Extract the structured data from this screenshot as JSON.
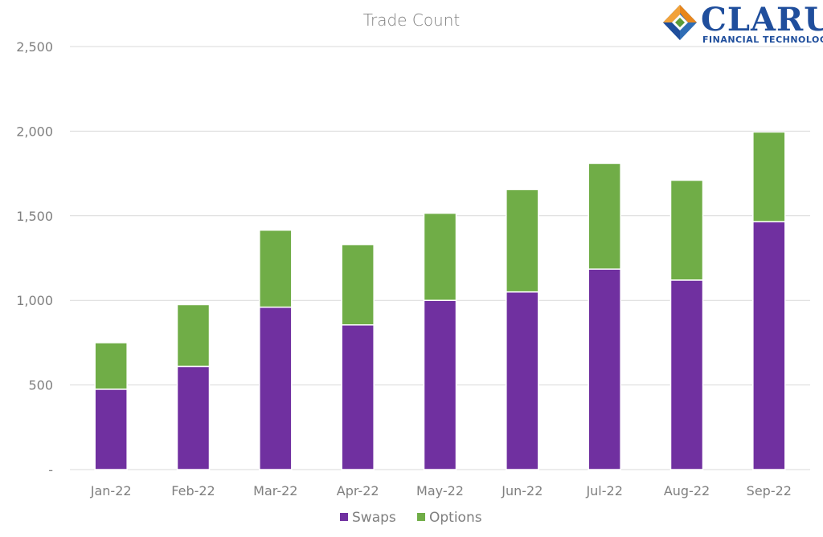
{
  "logo": {
    "name": "CLARUS",
    "tagline": "FINANCIAL TECHNOLOGY",
    "colors": {
      "navy": "#1f4e9c",
      "orange": "#e8861c",
      "green": "#5a9b3a",
      "blue": "#2f6db5"
    }
  },
  "chart_data": {
    "type": "bar",
    "stacked": true,
    "title": "Trade Count",
    "xlabel": "",
    "ylabel": "",
    "categories": [
      "Jan-22",
      "Feb-22",
      "Mar-22",
      "Apr-22",
      "May-22",
      "Jun-22",
      "Jul-22",
      "Aug-22",
      "Sep-22"
    ],
    "series": [
      {
        "name": "Swaps",
        "color": "#7030a0",
        "values": [
          475,
          610,
          960,
          855,
          1000,
          1050,
          1185,
          1120,
          1465
        ]
      },
      {
        "name": "Options",
        "color": "#70ad47",
        "values": [
          275,
          365,
          455,
          475,
          515,
          605,
          625,
          590,
          530
        ]
      }
    ],
    "ylim": [
      0,
      2500
    ],
    "yticks": [
      0,
      500,
      1000,
      1500,
      2000,
      2500
    ],
    "ytick_labels": [
      "-",
      "500",
      "1,000",
      "1,500",
      "2,000",
      "2,500"
    ],
    "grid": true,
    "legend_position": "bottom"
  }
}
